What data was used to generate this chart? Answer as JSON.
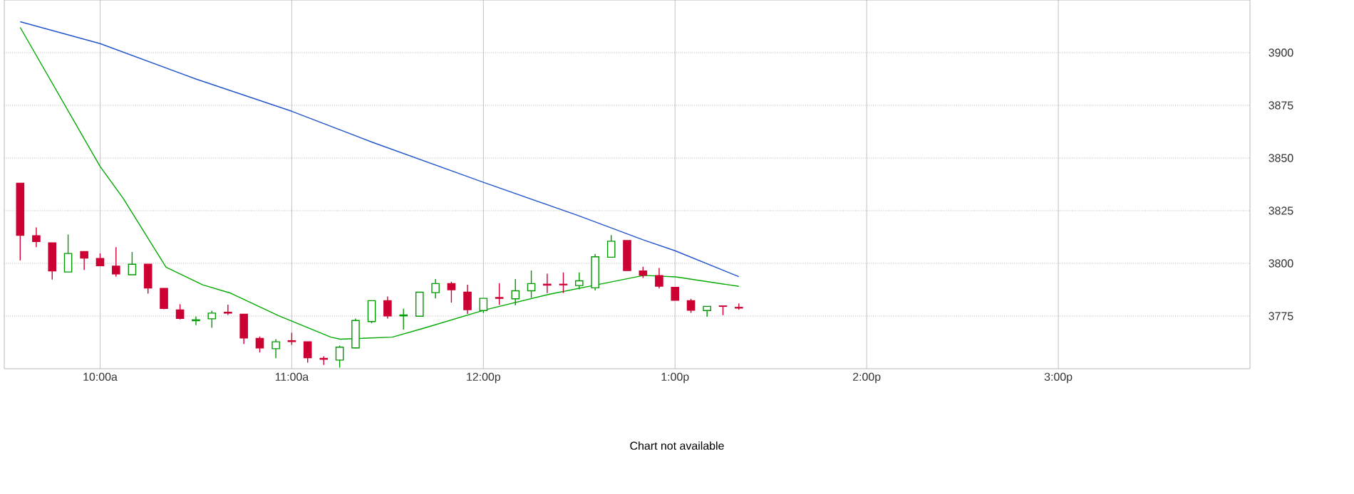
{
  "chart_data": {
    "type": "candlestick",
    "x": [
      9.583,
      9.667,
      9.75,
      9.833,
      9.917,
      10,
      10.083,
      10.167,
      10.25,
      10.333,
      10.417,
      10.5,
      10.583,
      10.667,
      10.75,
      10.833,
      10.917,
      11,
      11.083,
      11.167,
      11.25,
      11.333,
      11.417,
      11.5,
      11.583,
      11.667,
      11.75,
      11.833,
      11.917,
      12,
      12.083,
      12.167,
      12.25,
      12.333,
      12.417,
      12.5,
      12.583,
      12.667,
      12.75,
      12.833,
      12.917,
      13,
      13.083,
      13.167,
      13.25,
      13.333
    ],
    "ohlc": [
      [
        3838,
        3838,
        3801.4,
        3813.3
      ],
      [
        3813.1,
        3817.1,
        3807.7,
        3810.4
      ],
      [
        3809.7,
        3809.7,
        3792.3,
        3796.4
      ],
      [
        3795.9,
        3813.7,
        3795.9,
        3804.7
      ],
      [
        3805.6,
        3805.6,
        3796.9,
        3802.5
      ],
      [
        3802.3,
        3804.7,
        3798.9,
        3798.9
      ],
      [
        3798.7,
        3807.7,
        3793.7,
        3795
      ],
      [
        3794.6,
        3805.4,
        3794.6,
        3799.6
      ],
      [
        3799.6,
        3799.6,
        3785.6,
        3788.3
      ],
      [
        3788.1,
        3788.1,
        3778.2,
        3778.6
      ],
      [
        3777.9,
        3780.6,
        3773.4,
        3773.9
      ],
      [
        3772.8,
        3774.8,
        3770.7,
        3773.2
      ],
      [
        3773.7,
        3777.5,
        3769.4,
        3776.4
      ],
      [
        3776.8,
        3780.4,
        3775.5,
        3776.4
      ],
      [
        3775.9,
        3775.9,
        3761.7,
        3764.6
      ],
      [
        3764.4,
        3765.3,
        3757.7,
        3759.9
      ],
      [
        3759.5,
        3764,
        3755,
        3762.8
      ],
      [
        3763.3,
        3767.1,
        3761.3,
        3762.9
      ],
      [
        3762.8,
        3762.8,
        3752.9,
        3755.2
      ],
      [
        3754.9,
        3755.9,
        3751.8,
        3754.5
      ],
      [
        3754.1,
        3761,
        3750.5,
        3760.2
      ],
      [
        3759.9,
        3773.8,
        3759.5,
        3772.9
      ],
      [
        3772.4,
        3782.3,
        3771.6,
        3782.3
      ],
      [
        3782.3,
        3784.3,
        3773.8,
        3775.1
      ],
      [
        3775.1,
        3778.5,
        3768.6,
        3775.5
      ],
      [
        3774.9,
        3786.3,
        3774.9,
        3786.3
      ],
      [
        3786.1,
        3792.6,
        3783.4,
        3790.4
      ],
      [
        3790.4,
        3791.3,
        3781.4,
        3787.5
      ],
      [
        3786.3,
        3789.9,
        3776,
        3778
      ],
      [
        3777.6,
        3783.4,
        3776.5,
        3783.4
      ],
      [
        3783.8,
        3790.6,
        3780.3,
        3783.4
      ],
      [
        3783.2,
        3792.6,
        3780.1,
        3787
      ],
      [
        3787,
        3796.6,
        3783.6,
        3790.4
      ],
      [
        3790.1,
        3795.1,
        3785.9,
        3789.7
      ],
      [
        3790.1,
        3795.7,
        3785.9,
        3789.8
      ],
      [
        3789.5,
        3795.7,
        3787.7,
        3791.7
      ],
      [
        3788.4,
        3804.5,
        3787.2,
        3803.1
      ],
      [
        3802.9,
        3813.4,
        3802.9,
        3810.5
      ],
      [
        3810.8,
        3810.8,
        3796.6,
        3796.6
      ],
      [
        3796.4,
        3798.4,
        3793.1,
        3794.4
      ],
      [
        3794.2,
        3797.8,
        3788.1,
        3789.2
      ],
      [
        3788.6,
        3788.6,
        3782.5,
        3782.5
      ],
      [
        3782.3,
        3783.2,
        3776.5,
        3777.8
      ],
      [
        3777.6,
        3779.6,
        3774.7,
        3779.6
      ],
      [
        3779.8,
        3779.8,
        3775.4,
        3779.6
      ],
      [
        3779.1,
        3781,
        3778,
        3778.8
      ]
    ],
    "colors": [
      "#cc0033",
      "#cc0033",
      "#cc0033",
      "#009900",
      "#cc0033",
      "#cc0033",
      "#cc0033",
      "#009900",
      "#cc0033",
      "#cc0033",
      "#cc0033",
      "#009900",
      "#009900",
      "#cc0033",
      "#cc0033",
      "#cc0033",
      "#009900",
      "#cc0033",
      "#cc0033",
      "#cc0033",
      "#009900",
      "#009900",
      "#009900",
      "#cc0033",
      "#009900",
      "#009900",
      "#009900",
      "#cc0033",
      "#cc0033",
      "#009900",
      "#cc0033",
      "#009900",
      "#009900",
      "#cc0033",
      "#cc0033",
      "#009900",
      "#009900",
      "#009900",
      "#cc0033",
      "#cc0033",
      "#cc0033",
      "#cc0033",
      "#cc0033",
      "#009900",
      "#cc0033",
      "#cc0033"
    ],
    "series": [
      {
        "type": "line",
        "color": "#2255cc",
        "x": [
          9.583,
          10,
          10.5,
          11,
          11.417,
          12,
          12.5,
          12.833,
          13,
          13.333
        ],
        "values": [
          3914.7,
          3904.3,
          3887.5,
          3872.2,
          3857.6,
          3838.5,
          3822.5,
          3811.2,
          3806,
          3793.7
        ]
      },
      {
        "type": "line",
        "color": "#00aa00",
        "x": [
          9.583,
          10,
          10.121,
          10.344,
          10.535,
          10.683,
          10.93,
          11.204,
          11.253,
          11.525,
          11.699,
          12.008,
          12.342,
          12.591,
          12.838,
          13.004,
          13.333
        ],
        "values": [
          3912,
          3846,
          3830.8,
          3798.2,
          3789.8,
          3785.8,
          3775.2,
          3765,
          3764,
          3765,
          3769.5,
          3777.9,
          3785.3,
          3789.8,
          3794.3,
          3793.6,
          3789.1
        ]
      }
    ],
    "xlim": [
      9.5,
      16
    ],
    "ylim": [
      3750,
      3925
    ],
    "xticks": [
      {
        "value": 10,
        "label": "10:00a"
      },
      {
        "value": 11,
        "label": "11:00a"
      },
      {
        "value": 12,
        "label": "12:00p"
      },
      {
        "value": 13,
        "label": "1:00p"
      },
      {
        "value": 14,
        "label": "2:00p"
      },
      {
        "value": 15,
        "label": "3:00p"
      }
    ],
    "yticks": [
      3775,
      3800,
      3825,
      3850,
      3875,
      3900
    ],
    "grid": true,
    "annotations": [
      "Chart not available"
    ]
  }
}
